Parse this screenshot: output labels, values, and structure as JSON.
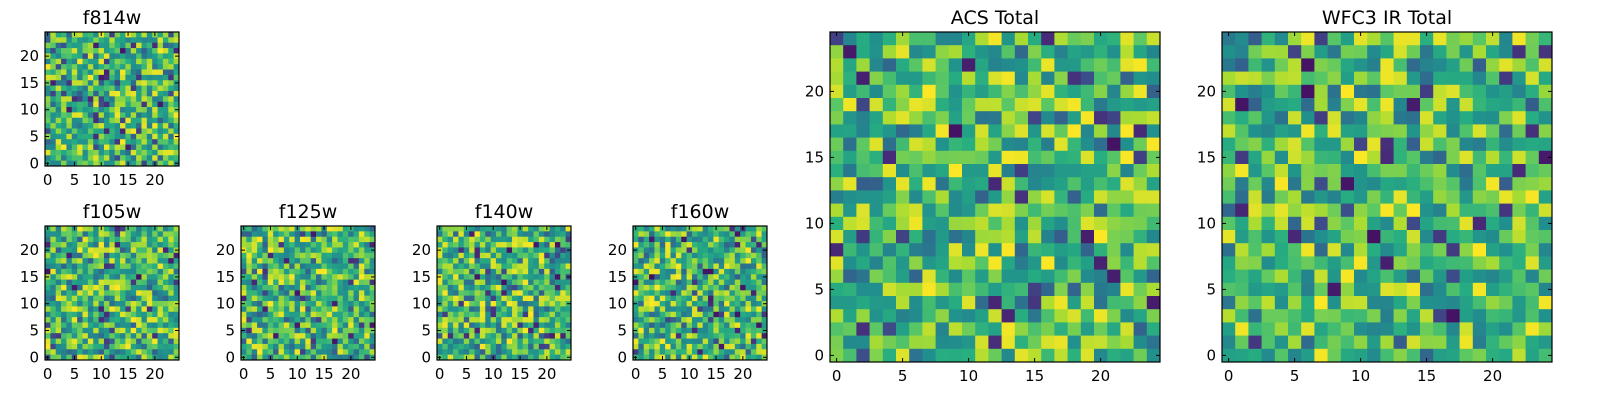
{
  "chart_data": [
    {
      "type": "heatmap",
      "title": "f814w",
      "xlim": [
        0,
        25
      ],
      "ylim": [
        0,
        25
      ],
      "x_ticks": [
        "0",
        "5",
        "10",
        "15",
        "20"
      ],
      "y_ticks": [
        "0",
        "5",
        "10",
        "15",
        "20"
      ],
      "grid_size": 25,
      "colormap": "viridis",
      "seed": 814
    },
    {
      "type": "heatmap",
      "title": "f105w",
      "xlim": [
        0,
        25
      ],
      "ylim": [
        0,
        25
      ],
      "x_ticks": [
        "0",
        "5",
        "10",
        "15",
        "20"
      ],
      "y_ticks": [
        "0",
        "5",
        "10",
        "15",
        "20"
      ],
      "grid_size": 25,
      "colormap": "viridis",
      "seed": 105
    },
    {
      "type": "heatmap",
      "title": "f125w",
      "xlim": [
        0,
        25
      ],
      "ylim": [
        0,
        25
      ],
      "x_ticks": [
        "0",
        "5",
        "10",
        "15",
        "20"
      ],
      "y_ticks": [
        "0",
        "5",
        "10",
        "15",
        "20"
      ],
      "grid_size": 25,
      "colormap": "viridis",
      "seed": 125
    },
    {
      "type": "heatmap",
      "title": "f140w",
      "xlim": [
        0,
        25
      ],
      "ylim": [
        0,
        25
      ],
      "x_ticks": [
        "0",
        "5",
        "10",
        "15",
        "20"
      ],
      "y_ticks": [
        "0",
        "5",
        "10",
        "15",
        "20"
      ],
      "grid_size": 25,
      "colormap": "viridis",
      "seed": 140
    },
    {
      "type": "heatmap",
      "title": "f160w",
      "xlim": [
        0,
        25
      ],
      "ylim": [
        0,
        25
      ],
      "x_ticks": [
        "0",
        "5",
        "10",
        "15",
        "20"
      ],
      "y_ticks": [
        "0",
        "5",
        "10",
        "15",
        "20"
      ],
      "grid_size": 25,
      "colormap": "viridis",
      "seed": 160
    },
    {
      "type": "heatmap",
      "title": "ACS Total",
      "xlim": [
        0,
        25
      ],
      "ylim": [
        0,
        25
      ],
      "x_ticks": [
        "0",
        "5",
        "10",
        "15",
        "20"
      ],
      "y_ticks": [
        "0",
        "5",
        "10",
        "15",
        "20"
      ],
      "grid_size": 25,
      "colormap": "viridis",
      "seed": 901
    },
    {
      "type": "heatmap",
      "title": "WFC3 IR Total",
      "xlim": [
        0,
        25
      ],
      "ylim": [
        0,
        25
      ],
      "x_ticks": [
        "0",
        "5",
        "10",
        "15",
        "20"
      ],
      "y_ticks": [
        "0",
        "5",
        "10",
        "15",
        "20"
      ],
      "grid_size": 25,
      "colormap": "viridis",
      "seed": 902
    }
  ]
}
